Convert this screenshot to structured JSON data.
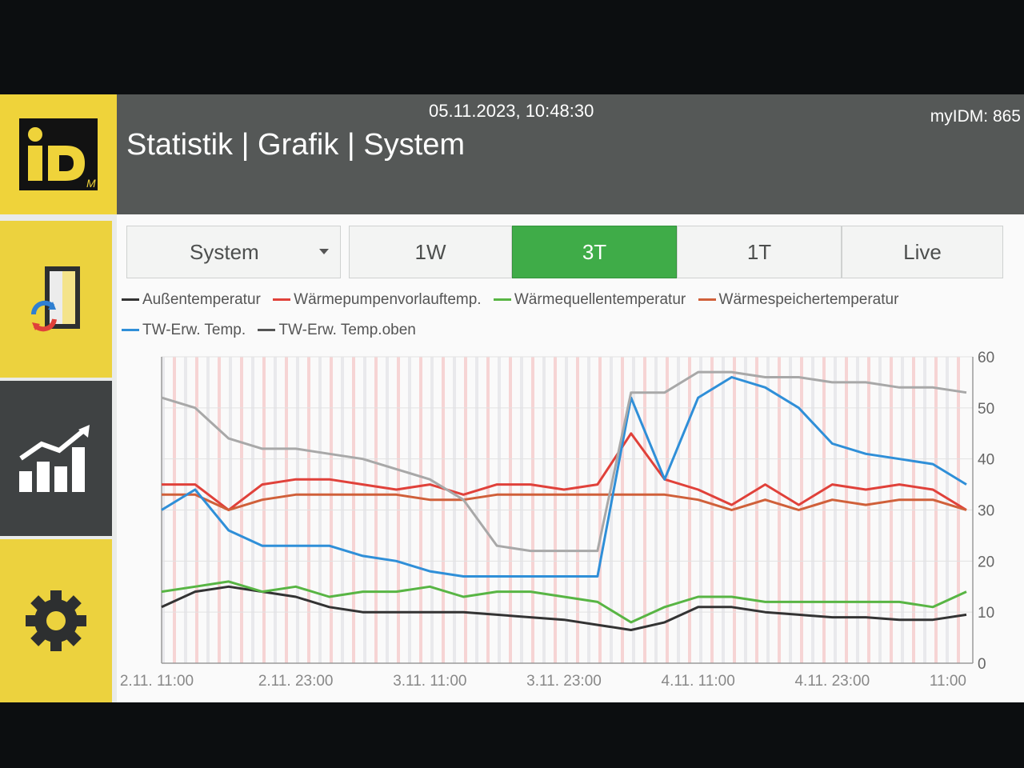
{
  "header": {
    "datetime": "05.11.2023, 10:48:30",
    "title": "Statistik | Grafik | System",
    "myidm": "myIDM: 865"
  },
  "sidebar": {
    "logo_text": "iD",
    "logo_sub": "M",
    "items": [
      {
        "name": "system-icon"
      },
      {
        "name": "statistics-icon"
      },
      {
        "name": "settings-gear-icon"
      }
    ]
  },
  "tabs": {
    "dropdown_value": "System",
    "ranges": [
      "1W",
      "3T",
      "1T",
      "Live"
    ],
    "active": "3T"
  },
  "colors": {
    "accent_green": "#3fac48",
    "brand_yellow": "#efd33a"
  },
  "chart_data": {
    "type": "line",
    "x": [
      "2.11. 11:00",
      "2.11. 14:00",
      "2.11. 17:00",
      "2.11. 20:00",
      "2.11. 23:00",
      "3.11. 02:00",
      "3.11. 05:00",
      "3.11. 08:00",
      "3.11. 11:00",
      "3.11. 14:00",
      "3.11. 17:00",
      "3.11. 20:00",
      "3.11. 23:00",
      "4.11. 02:00",
      "4.11. 05:00",
      "4.11. 08:00",
      "4.11. 11:00",
      "4.11. 14:00",
      "4.11. 17:00",
      "4.11. 20:00",
      "4.11. 23:00",
      "5.11. 02:00",
      "5.11. 05:00",
      "5.11. 08:00",
      "5.11. 11:00"
    ],
    "xticks": [
      "2.11. 11:00",
      "2.11. 23:00",
      "3.11. 11:00",
      "3.11. 23:00",
      "4.11. 11:00",
      "4.11. 23:00",
      "11:00"
    ],
    "ylim": [
      0,
      60
    ],
    "yticks": [
      0,
      10,
      20,
      30,
      40,
      50,
      60
    ],
    "y_axis_side": "right",
    "grid": true,
    "legend_position": "top",
    "series": [
      {
        "name": "Außentemperatur",
        "color": "#333333",
        "values": [
          11,
          14,
          15,
          14,
          13,
          11,
          10,
          10,
          10,
          10,
          9.5,
          9,
          8.5,
          7.5,
          6.5,
          8,
          11,
          11,
          10,
          9.5,
          9,
          9,
          8.5,
          8.5,
          9.5
        ]
      },
      {
        "name": "Wärmepumpenvorlauftemp.",
        "color": "#e0413a",
        "values": [
          35,
          35,
          30,
          35,
          36,
          36,
          35,
          34,
          35,
          33,
          35,
          35,
          34,
          35,
          45,
          36,
          34,
          31,
          35,
          31,
          35,
          34,
          35,
          34,
          30
        ]
      },
      {
        "name": "Wärmequellentemperatur",
        "color": "#58b544",
        "values": [
          14,
          15,
          16,
          14,
          15,
          13,
          14,
          14,
          15,
          13,
          14,
          14,
          13,
          12,
          8,
          11,
          13,
          13,
          12,
          12,
          12,
          12,
          12,
          11,
          14
        ]
      },
      {
        "name": "Wärmespeichertemperatur",
        "color": "#d0603a",
        "values": [
          33,
          33,
          30,
          32,
          33,
          33,
          33,
          33,
          32,
          32,
          33,
          33,
          33,
          33,
          33,
          33,
          32,
          30,
          32,
          30,
          32,
          31,
          32,
          32,
          30
        ]
      },
      {
        "name": "TW-Erw. Temp.",
        "color": "#2f8fd8",
        "values": [
          30,
          34,
          26,
          23,
          23,
          23,
          21,
          20,
          18,
          17,
          17,
          17,
          17,
          17,
          52,
          36,
          52,
          56,
          54,
          50,
          43,
          41,
          40,
          39,
          35
        ]
      },
      {
        "name": "TW-Erw. Temp.oben",
        "color": "#a8a8a8",
        "values": [
          52,
          50,
          44,
          42,
          42,
          41,
          40,
          38,
          36,
          32,
          23,
          22,
          22,
          22,
          53,
          53,
          57,
          57,
          56,
          56,
          55,
          55,
          54,
          54,
          53
        ]
      }
    ]
  }
}
